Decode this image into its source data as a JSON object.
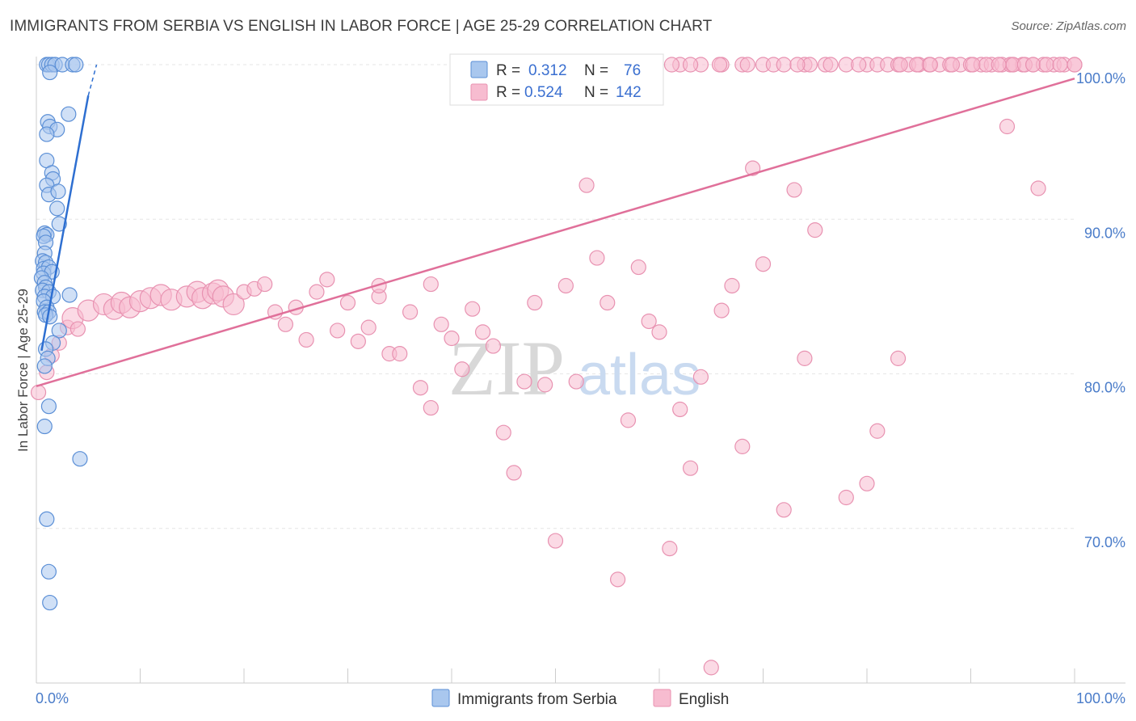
{
  "title": "IMMIGRANTS FROM SERBIA VS ENGLISH IN LABOR FORCE | AGE 25-29 CORRELATION CHART",
  "source": "Source: ZipAtlas.com",
  "watermark": {
    "zip": "ZIP",
    "atlas": "atlas"
  },
  "colors": {
    "serbia_fill": "#a9c7ee",
    "serbia_stroke": "#5b8fd6",
    "serbia_line": "#2e6fd1",
    "english_fill": "#f7bcd0",
    "english_stroke": "#e892b1",
    "english_line": "#e0709a",
    "grid": "#e6e6e6",
    "tick_text": "#4a7cc9"
  },
  "legend": {
    "rows": [
      {
        "r_label": "R =",
        "r_value": "0.312",
        "n_label": "N =",
        "n_value": "76"
      },
      {
        "r_label": "R =",
        "r_value": "0.524",
        "n_label": "N =",
        "n_value": "142"
      }
    ]
  },
  "bottom_legend": [
    "Immigrants from Serbia",
    "English"
  ],
  "chart_data": {
    "type": "scatter",
    "title": "IMMIGRANTS FROM SERBIA VS ENGLISH IN LABOR FORCE | AGE 25-29 CORRELATION CHART",
    "xlabel": "",
    "ylabel": "In Labor Force | Age 25-29",
    "xlim": [
      0,
      100
    ],
    "ylim": [
      60,
      100
    ],
    "x_ticks": [
      "0.0%",
      "100.0%"
    ],
    "y_ticks": [
      {
        "value": 100,
        "label": "100.0%"
      },
      {
        "value": 90,
        "label": "90.0%"
      },
      {
        "value": 80,
        "label": "80.0%"
      },
      {
        "value": 70,
        "label": "70.0%"
      }
    ],
    "grid": true,
    "legend_position": "top-center",
    "series": [
      {
        "name": "Immigrants from Serbia",
        "trend": {
          "x": [
            0.5,
            5.0
          ],
          "y": [
            81.5,
            98.0
          ],
          "dashed_to": {
            "x": 5.8,
            "y": 100.0
          }
        },
        "points": [
          [
            1.0,
            100
          ],
          [
            1.2,
            100
          ],
          [
            1.5,
            100
          ],
          [
            1.8,
            100
          ],
          [
            2.5,
            100
          ],
          [
            3.5,
            100
          ],
          [
            3.8,
            100
          ],
          [
            1.3,
            99.5
          ],
          [
            3.1,
            96.8
          ],
          [
            1.1,
            96.3
          ],
          [
            1.3,
            96.0
          ],
          [
            2.0,
            95.8
          ],
          [
            1.0,
            95.5
          ],
          [
            1.0,
            93.8
          ],
          [
            1.5,
            93.0
          ],
          [
            1.6,
            92.6
          ],
          [
            1.0,
            92.2
          ],
          [
            1.2,
            91.6
          ],
          [
            2.1,
            91.8
          ],
          [
            2.0,
            90.7
          ],
          [
            2.2,
            89.7
          ],
          [
            0.8,
            89.1
          ],
          [
            1.0,
            89.0
          ],
          [
            0.7,
            88.9
          ],
          [
            0.9,
            88.5
          ],
          [
            0.8,
            87.8
          ],
          [
            0.6,
            87.3
          ],
          [
            0.9,
            87.2
          ],
          [
            0.7,
            86.8
          ],
          [
            1.2,
            86.9
          ],
          [
            0.7,
            86.5
          ],
          [
            1.5,
            86.6
          ],
          [
            0.5,
            86.2
          ],
          [
            0.8,
            85.9
          ],
          [
            0.9,
            85.6
          ],
          [
            0.6,
            85.4
          ],
          [
            1.2,
            85.3
          ],
          [
            0.8,
            85.0
          ],
          [
            1.6,
            85.0
          ],
          [
            3.2,
            85.1
          ],
          [
            0.7,
            84.7
          ],
          [
            1.0,
            84.3
          ],
          [
            0.8,
            84.0
          ],
          [
            1.2,
            84.0
          ],
          [
            0.9,
            83.8
          ],
          [
            1.3,
            83.7
          ],
          [
            2.2,
            82.8
          ],
          [
            1.6,
            82.0
          ],
          [
            0.9,
            81.6
          ],
          [
            1.1,
            81.0
          ],
          [
            0.8,
            80.5
          ],
          [
            1.2,
            77.9
          ],
          [
            0.8,
            76.6
          ],
          [
            4.2,
            74.5
          ],
          [
            1.0,
            70.6
          ],
          [
            1.2,
            67.2
          ],
          [
            1.3,
            65.2
          ]
        ]
      },
      {
        "name": "English",
        "trend": {
          "x": [
            0,
            100
          ],
          "y": [
            79.2,
            99.1
          ]
        },
        "points": [
          [
            0.2,
            78.8
          ],
          [
            1.0,
            80.1
          ],
          [
            1.5,
            81.2
          ],
          [
            2.2,
            82.0
          ],
          [
            3.0,
            83.0
          ],
          [
            3.5,
            83.6
          ],
          [
            4.0,
            82.9
          ],
          [
            5.0,
            84.1
          ],
          [
            6.5,
            84.5
          ],
          [
            7.5,
            84.2
          ],
          [
            8.2,
            84.6
          ],
          [
            9.0,
            84.3
          ],
          [
            10.0,
            84.7
          ],
          [
            11.0,
            84.9
          ],
          [
            12.0,
            85.1
          ],
          [
            13.0,
            84.8
          ],
          [
            14.5,
            85.0
          ],
          [
            15.5,
            85.3
          ],
          [
            16.0,
            84.9
          ],
          [
            17.0,
            85.2
          ],
          [
            17.5,
            85.4
          ],
          [
            18.0,
            85.0
          ],
          [
            19.0,
            84.5
          ],
          [
            20.0,
            85.3
          ],
          [
            21.0,
            85.5
          ],
          [
            22.0,
            85.8
          ],
          [
            23.0,
            84.0
          ],
          [
            24.0,
            83.2
          ],
          [
            25.0,
            84.3
          ],
          [
            26.0,
            82.2
          ],
          [
            27.0,
            85.3
          ],
          [
            28.0,
            86.1
          ],
          [
            29.0,
            82.8
          ],
          [
            30.0,
            84.6
          ],
          [
            31.0,
            82.1
          ],
          [
            32.0,
            83.0
          ],
          [
            33.0,
            85.0
          ],
          [
            34.0,
            81.3
          ],
          [
            35.0,
            81.3
          ],
          [
            36.0,
            84.0
          ],
          [
            37.0,
            79.1
          ],
          [
            38.0,
            77.8
          ],
          [
            39.0,
            83.2
          ],
          [
            40.0,
            82.3
          ],
          [
            41.0,
            80.3
          ],
          [
            42.0,
            84.2
          ],
          [
            43.0,
            82.7
          ],
          [
            44.0,
            81.8
          ],
          [
            45.0,
            76.2
          ],
          [
            46.0,
            73.6
          ],
          [
            47.0,
            79.5
          ],
          [
            48.0,
            84.6
          ],
          [
            49.0,
            79.3
          ],
          [
            50.0,
            69.2
          ],
          [
            51.0,
            85.7
          ],
          [
            52.0,
            79.5
          ],
          [
            53.0,
            92.2
          ],
          [
            54.0,
            87.5
          ],
          [
            55.0,
            84.6
          ],
          [
            56.0,
            66.7
          ],
          [
            57.0,
            77.0
          ],
          [
            58.0,
            86.9
          ],
          [
            59.0,
            83.4
          ],
          [
            60.0,
            82.7
          ],
          [
            61.0,
            68.7
          ],
          [
            62.0,
            77.7
          ],
          [
            63.0,
            73.9
          ],
          [
            64.0,
            79.8
          ],
          [
            65.0,
            61.0
          ],
          [
            66.0,
            84.1
          ],
          [
            67.0,
            85.7
          ],
          [
            68.0,
            75.3
          ],
          [
            69.0,
            93.3
          ],
          [
            70.0,
            87.1
          ],
          [
            72.0,
            71.2
          ],
          [
            73.0,
            91.9
          ],
          [
            74.0,
            81.0
          ],
          [
            75.0,
            89.3
          ],
          [
            78.0,
            72.0
          ],
          [
            80.0,
            72.9
          ],
          [
            81.0,
            76.3
          ],
          [
            83.0,
            81.0
          ],
          [
            33.0,
            85.7
          ],
          [
            38.0,
            85.8
          ],
          [
            62.0,
            100
          ],
          [
            64.0,
            100
          ],
          [
            66.0,
            100
          ],
          [
            68.0,
            100
          ],
          [
            70.0,
            100
          ],
          [
            71.0,
            100
          ],
          [
            72.0,
            100
          ],
          [
            74.0,
            100
          ],
          [
            76.0,
            100
          ],
          [
            78.0,
            100
          ],
          [
            80.0,
            100
          ],
          [
            81.0,
            100
          ],
          [
            82.0,
            100
          ],
          [
            83.0,
            100
          ],
          [
            84.0,
            100
          ],
          [
            85.0,
            100
          ],
          [
            86.0,
            100
          ],
          [
            87.0,
            100
          ],
          [
            88.0,
            100
          ],
          [
            89.0,
            100
          ],
          [
            90.0,
            100
          ],
          [
            91.0,
            100
          ],
          [
            92.0,
            100
          ],
          [
            93.0,
            100
          ],
          [
            94.0,
            100
          ],
          [
            95.0,
            100
          ],
          [
            96.0,
            100
          ],
          [
            97.0,
            100
          ],
          [
            98.0,
            100
          ],
          [
            99.0,
            100
          ],
          [
            100.0,
            100
          ],
          [
            93.5,
            96.0
          ],
          [
            96.5,
            92.0
          ],
          [
            93.8,
            100
          ],
          [
            79.2,
            100
          ],
          [
            83.2,
            100
          ],
          [
            84.8,
            100
          ],
          [
            86.1,
            100
          ],
          [
            88.2,
            100
          ],
          [
            90.2,
            100
          ],
          [
            91.5,
            100
          ],
          [
            92.7,
            100
          ],
          [
            94.1,
            100
          ],
          [
            95.2,
            100
          ],
          [
            96.0,
            100
          ],
          [
            97.3,
            100
          ],
          [
            98.6,
            100
          ],
          [
            100.0,
            100
          ],
          [
            76.5,
            100
          ],
          [
            74.5,
            100
          ],
          [
            73.3,
            100
          ],
          [
            68.5,
            100
          ],
          [
            65.8,
            100
          ],
          [
            63.0,
            100
          ],
          [
            61.2,
            100
          ]
        ]
      }
    ]
  }
}
